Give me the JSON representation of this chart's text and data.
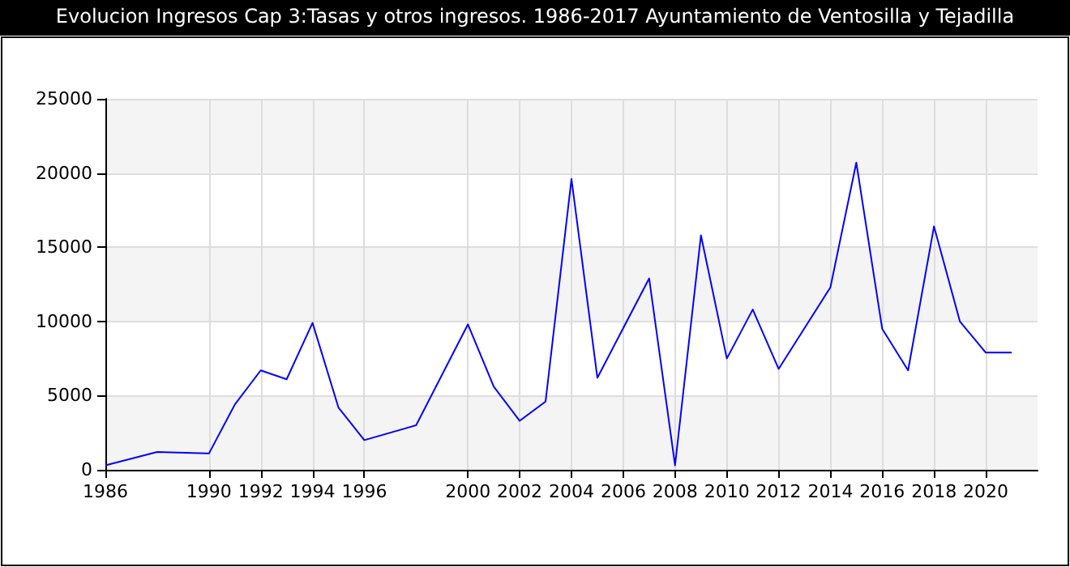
{
  "chart_data": {
    "type": "line",
    "title": "Evolucion Ingresos Cap 3:Tasas y otros ingresos. 1986-2017 Ayuntamiento de Ventosilla y Tejadilla",
    "x": [
      1986,
      1988,
      1990,
      1991,
      1992,
      1993,
      1994,
      1995,
      1996,
      1998,
      2000,
      2001,
      2002,
      2003,
      2004,
      2005,
      2007,
      2008,
      2009,
      2010,
      2011,
      2012,
      2014,
      2015,
      2016,
      2017,
      2018,
      2019,
      2020,
      2021
    ],
    "series": [
      {
        "color": "#0000ff",
        "values": [
          300,
          1200,
          1100,
          4400,
          6700,
          6100,
          9900,
          4200,
          2000,
          3000,
          9800,
          5600,
          3300,
          4600,
          19600,
          6200,
          12900,
          300,
          15800,
          7500,
          10800,
          6800,
          12300,
          20700,
          9500,
          6700,
          16400,
          10000,
          7900,
          7900
        ]
      }
    ],
    "xlim": [
      1986,
      2022
    ],
    "xticks": [
      1986,
      1990,
      1992,
      1994,
      1996,
      2000,
      2002,
      2004,
      2006,
      2008,
      2010,
      2012,
      2014,
      2016,
      2018,
      2020
    ],
    "ylim": [
      0,
      25000
    ],
    "yticks": [
      0,
      5000,
      10000,
      15000,
      20000,
      25000
    ],
    "grid": true,
    "marker": "none",
    "line_style": "solid"
  }
}
